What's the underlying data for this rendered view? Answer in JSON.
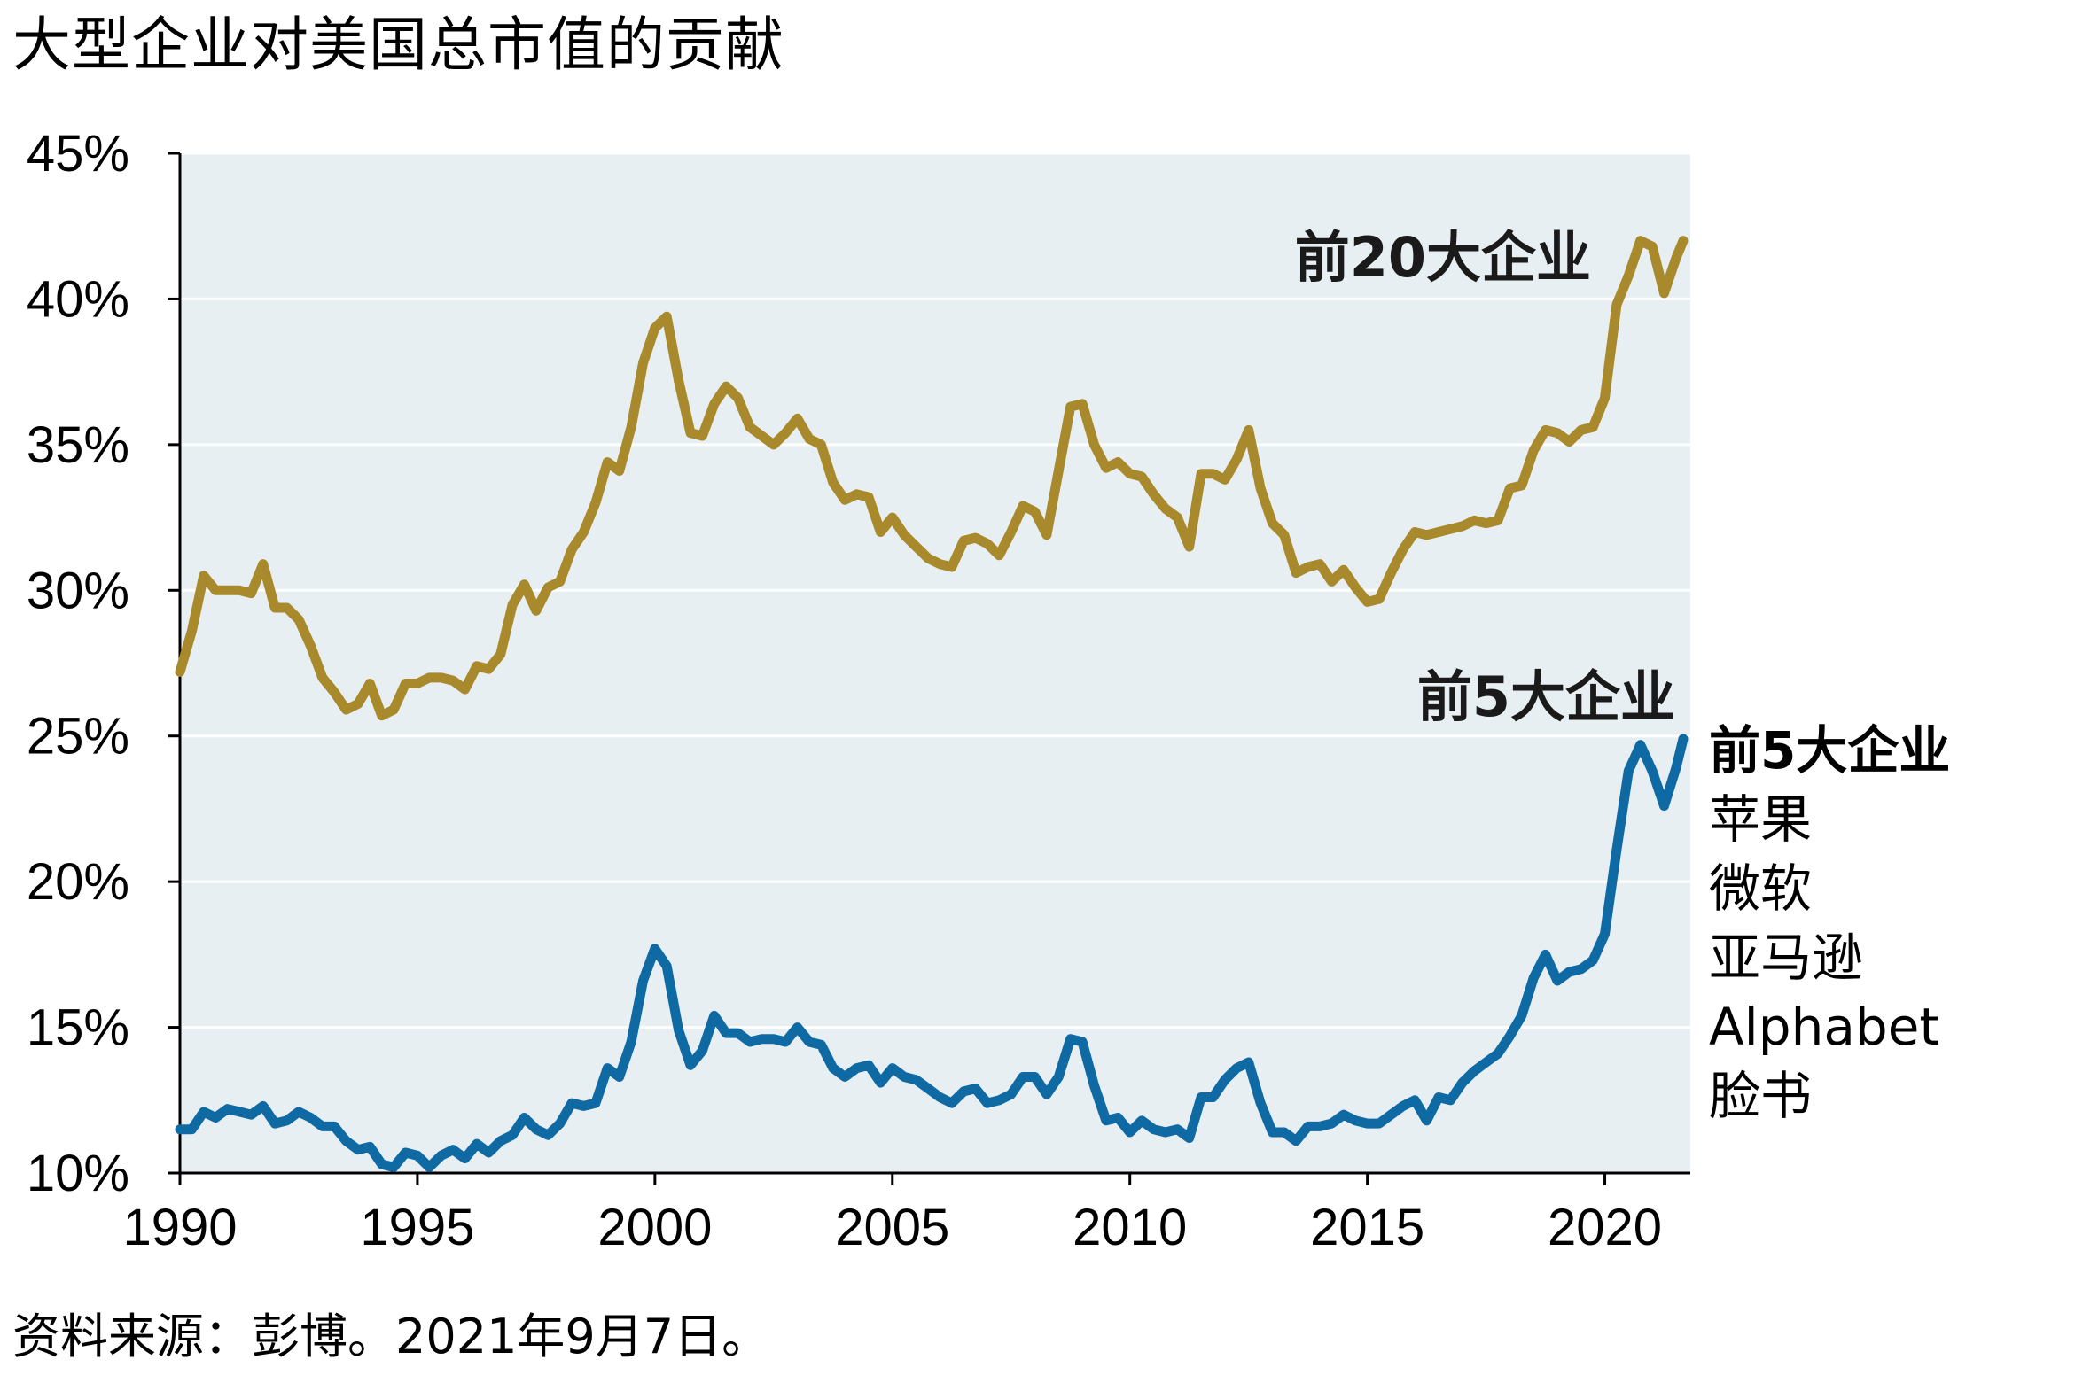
{
  "title": "大型企业对美国总市值的贡献",
  "source": "资料来源：彭博。2021年9月7日。",
  "colors": {
    "plot_background": "#e8eff3",
    "gridline": "#ffffff",
    "axis": "#000000",
    "top20_series": "#a88a2c",
    "top5_series": "#0f6aa4"
  },
  "legend": {
    "heading": "前5大企业",
    "companies": [
      "苹果",
      "微软",
      "亚马逊",
      "Alphabet",
      "脸书"
    ]
  },
  "chart_data": {
    "type": "line",
    "title": "大型企业对美国总市值的贡献",
    "xlabel": "",
    "ylabel": "",
    "xlim": [
      1990,
      2021.8
    ],
    "ylim": [
      10,
      45
    ],
    "x_ticks": [
      1990,
      1995,
      2000,
      2005,
      2010,
      2015,
      2020
    ],
    "y_ticks": [
      10,
      15,
      20,
      25,
      30,
      35,
      40,
      45
    ],
    "y_tick_labels": [
      "10%",
      "15%",
      "20%",
      "25%",
      "30%",
      "35%",
      "40%",
      "45%"
    ],
    "grid": "horizontal",
    "legend": "direct labels",
    "series": [
      {
        "name": "前20大企业",
        "color": "#a88a2c",
        "x": [
          1990.0,
          1990.25,
          1990.5,
          1990.75,
          1991.0,
          1991.25,
          1991.5,
          1991.75,
          1992.0,
          1992.25,
          1992.5,
          1992.75,
          1993.0,
          1993.25,
          1993.5,
          1993.75,
          1994.0,
          1994.25,
          1994.5,
          1994.75,
          1995.0,
          1995.25,
          1995.5,
          1995.75,
          1996.0,
          1996.25,
          1996.5,
          1996.75,
          1997.0,
          1997.25,
          1997.5,
          1997.75,
          1998.0,
          1998.25,
          1998.5,
          1998.75,
          1999.0,
          1999.25,
          1999.5,
          1999.75,
          2000.0,
          2000.25,
          2000.5,
          2000.75,
          2001.0,
          2001.25,
          2001.5,
          2001.75,
          2002.0,
          2002.25,
          2002.5,
          2002.75,
          2003.0,
          2003.25,
          2003.5,
          2003.75,
          2004.0,
          2004.25,
          2004.5,
          2004.75,
          2005.0,
          2005.25,
          2005.5,
          2005.75,
          2006.0,
          2006.25,
          2006.5,
          2006.75,
          2007.0,
          2007.25,
          2007.5,
          2007.75,
          2008.0,
          2008.25,
          2008.5,
          2008.75,
          2009.0,
          2009.25,
          2009.5,
          2009.75,
          2010.0,
          2010.25,
          2010.5,
          2010.75,
          2011.0,
          2011.25,
          2011.5,
          2011.75,
          2012.0,
          2012.25,
          2012.5,
          2012.75,
          2013.0,
          2013.25,
          2013.5,
          2013.75,
          2014.0,
          2014.25,
          2014.5,
          2014.75,
          2015.0,
          2015.25,
          2015.5,
          2015.75,
          2016.0,
          2016.25,
          2016.5,
          2016.75,
          2017.0,
          2017.25,
          2017.5,
          2017.75,
          2018.0,
          2018.25,
          2018.5,
          2018.75,
          2019.0,
          2019.25,
          2019.5,
          2019.75,
          2020.0,
          2020.25,
          2020.5,
          2020.75,
          2021.0,
          2021.25,
          2021.5,
          2021.65
        ],
        "values": [
          27.2,
          28.6,
          30.5,
          30.0,
          30.0,
          30.0,
          29.9,
          30.9,
          29.4,
          29.4,
          29.0,
          28.1,
          27.0,
          26.5,
          25.9,
          26.1,
          26.8,
          25.7,
          25.9,
          26.8,
          26.8,
          27.0,
          27.0,
          26.9,
          26.6,
          27.4,
          27.3,
          27.8,
          29.5,
          30.2,
          29.3,
          30.1,
          30.3,
          31.4,
          32.0,
          33.0,
          34.4,
          34.1,
          35.6,
          37.8,
          39.0,
          39.4,
          37.2,
          35.4,
          35.3,
          36.4,
          37.0,
          36.6,
          35.6,
          35.3,
          35.0,
          35.4,
          35.9,
          35.2,
          35.0,
          33.7,
          33.1,
          33.3,
          33.2,
          32.0,
          32.5,
          31.9,
          31.5,
          31.1,
          30.9,
          30.8,
          31.7,
          31.8,
          31.6,
          31.2,
          32.0,
          32.9,
          32.7,
          31.9,
          34.1,
          36.3,
          36.4,
          35.0,
          34.2,
          34.4,
          34.0,
          33.9,
          33.3,
          32.8,
          32.5,
          31.5,
          34.0,
          34.0,
          33.8,
          34.5,
          35.5,
          33.5,
          32.3,
          31.9,
          30.6,
          30.8,
          30.9,
          30.3,
          30.7,
          30.1,
          29.6,
          29.7,
          30.6,
          31.4,
          32.0,
          31.9,
          32.0,
          32.1,
          32.2,
          32.4,
          32.3,
          32.4,
          33.5,
          33.6,
          34.8,
          35.5,
          35.4,
          35.1,
          35.5,
          35.6,
          36.6,
          39.8,
          40.8,
          42.0,
          41.8,
          40.2,
          41.4,
          42.0
        ]
      },
      {
        "name": "前5大企业",
        "color": "#0f6aa4",
        "x": [
          1990.0,
          1990.25,
          1990.5,
          1990.75,
          1991.0,
          1991.25,
          1991.5,
          1991.75,
          1992.0,
          1992.25,
          1992.5,
          1992.75,
          1993.0,
          1993.25,
          1993.5,
          1993.75,
          1994.0,
          1994.25,
          1994.5,
          1994.75,
          1995.0,
          1995.25,
          1995.5,
          1995.75,
          1996.0,
          1996.25,
          1996.5,
          1996.75,
          1997.0,
          1997.25,
          1997.5,
          1997.75,
          1998.0,
          1998.25,
          1998.5,
          1998.75,
          1999.0,
          1999.25,
          1999.5,
          1999.75,
          2000.0,
          2000.25,
          2000.5,
          2000.75,
          2001.0,
          2001.25,
          2001.5,
          2001.75,
          2002.0,
          2002.25,
          2002.5,
          2002.75,
          2003.0,
          2003.25,
          2003.5,
          2003.75,
          2004.0,
          2004.25,
          2004.5,
          2004.75,
          2005.0,
          2005.25,
          2005.5,
          2005.75,
          2006.0,
          2006.25,
          2006.5,
          2006.75,
          2007.0,
          2007.25,
          2007.5,
          2007.75,
          2008.0,
          2008.25,
          2008.5,
          2008.75,
          2009.0,
          2009.25,
          2009.5,
          2009.75,
          2010.0,
          2010.25,
          2010.5,
          2010.75,
          2011.0,
          2011.25,
          2011.5,
          2011.75,
          2012.0,
          2012.25,
          2012.5,
          2012.75,
          2013.0,
          2013.25,
          2013.5,
          2013.75,
          2014.0,
          2014.25,
          2014.5,
          2014.75,
          2015.0,
          2015.25,
          2015.5,
          2015.75,
          2016.0,
          2016.25,
          2016.5,
          2016.75,
          2017.0,
          2017.25,
          2017.5,
          2017.75,
          2018.0,
          2018.25,
          2018.5,
          2018.75,
          2019.0,
          2019.25,
          2019.5,
          2019.75,
          2020.0,
          2020.25,
          2020.5,
          2020.75,
          2021.0,
          2021.25,
          2021.5,
          2021.65
        ],
        "values": [
          11.5,
          11.5,
          12.1,
          11.9,
          12.2,
          12.1,
          12.0,
          12.3,
          11.7,
          11.8,
          12.1,
          11.9,
          11.6,
          11.6,
          11.1,
          10.8,
          10.9,
          10.3,
          10.2,
          10.7,
          10.6,
          10.2,
          10.6,
          10.8,
          10.5,
          11.0,
          10.7,
          11.1,
          11.3,
          11.9,
          11.5,
          11.3,
          11.7,
          12.4,
          12.3,
          12.4,
          13.6,
          13.3,
          14.5,
          16.6,
          17.7,
          17.1,
          14.9,
          13.7,
          14.2,
          15.4,
          14.8,
          14.8,
          14.5,
          14.6,
          14.6,
          14.5,
          15.0,
          14.5,
          14.4,
          13.6,
          13.3,
          13.6,
          13.7,
          13.1,
          13.6,
          13.3,
          13.2,
          12.9,
          12.6,
          12.4,
          12.8,
          12.9,
          12.4,
          12.5,
          12.7,
          13.3,
          13.3,
          12.7,
          13.3,
          14.6,
          14.5,
          13.0,
          11.8,
          11.9,
          11.4,
          11.8,
          11.5,
          11.4,
          11.5,
          11.2,
          12.6,
          12.6,
          13.2,
          13.6,
          13.8,
          12.4,
          11.4,
          11.4,
          11.1,
          11.6,
          11.6,
          11.7,
          12.0,
          11.8,
          11.7,
          11.7,
          12.0,
          12.3,
          12.5,
          11.8,
          12.6,
          12.5,
          13.1,
          13.5,
          13.8,
          14.1,
          14.7,
          15.4,
          16.7,
          17.5,
          16.6,
          16.9,
          17.0,
          17.3,
          18.2,
          21.1,
          23.8,
          24.7,
          23.8,
          22.6,
          23.9,
          24.9
        ]
      }
    ],
    "annotations": [
      "前20大企业",
      "前5大企业"
    ]
  }
}
